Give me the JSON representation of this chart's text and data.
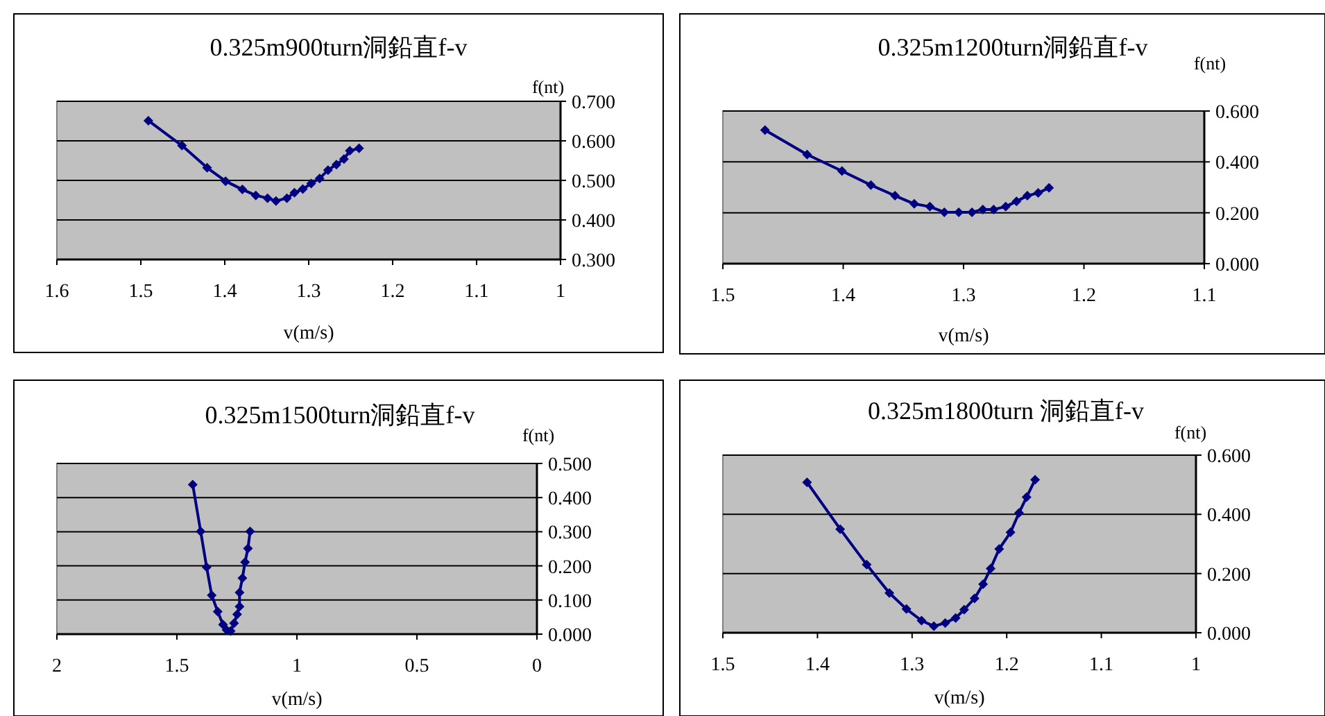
{
  "chart_data": [
    {
      "type": "line",
      "title": "0.325m900turn洞鉛直f-v",
      "xlabel": "v(m/s)",
      "ylabel": "f(nt)",
      "grid": "y",
      "marker": "diamond",
      "line_style": "solid",
      "xlim": [
        1.6,
        1.0
      ],
      "xticks": [
        1.6,
        1.5,
        1.4,
        1.3,
        1.2,
        1.1,
        1
      ],
      "ylim": [
        0.3,
        0.7
      ],
      "yticks": [
        {
          "value": 0.3,
          "label": "0.300"
        },
        {
          "value": 0.4,
          "label": "0.400"
        },
        {
          "value": 0.5,
          "label": "0.500"
        },
        {
          "value": 0.6,
          "label": "0.600"
        },
        {
          "value": 0.7,
          "label": "0.700"
        }
      ],
      "series": [
        {
          "color": "#000080",
          "x": [
            1.491,
            1.451,
            1.421,
            1.399,
            1.379,
            1.363,
            1.349,
            1.339,
            1.326,
            1.317,
            1.307,
            1.297,
            1.287,
            1.277,
            1.267,
            1.258,
            1.251,
            1.24
          ],
          "values": [
            0.651,
            0.588,
            0.532,
            0.498,
            0.477,
            0.462,
            0.455,
            0.448,
            0.455,
            0.469,
            0.478,
            0.492,
            0.505,
            0.526,
            0.54,
            0.554,
            0.575,
            0.581
          ]
        }
      ]
    },
    {
      "type": "line",
      "title": "0.325m1200turn洞鉛直f-v",
      "xlabel": "v(m/s)",
      "ylabel": "f(nt)",
      "grid": "y",
      "marker": "diamond",
      "line_style": "solid",
      "xlim": [
        1.5,
        1.1
      ],
      "xticks": [
        1.5,
        1.4,
        1.3,
        1.2,
        1.1
      ],
      "ylim": [
        0,
        0.6
      ],
      "yticks": [
        {
          "value": 0,
          "label": "0.000"
        },
        {
          "value": 0.2,
          "label": "0.200"
        },
        {
          "value": 0.4,
          "label": "0.400"
        },
        {
          "value": 0.6,
          "label": "0.600"
        }
      ],
      "series": [
        {
          "color": "#000080",
          "x": [
            1.465,
            1.43,
            1.401,
            1.377,
            1.357,
            1.341,
            1.328,
            1.316,
            1.304,
            1.293,
            1.284,
            1.275,
            1.265,
            1.256,
            1.247,
            1.238,
            1.229
          ],
          "values": [
            0.525,
            0.429,
            0.364,
            0.309,
            0.267,
            0.235,
            0.224,
            0.202,
            0.202,
            0.202,
            0.213,
            0.213,
            0.224,
            0.245,
            0.267,
            0.278,
            0.298
          ]
        }
      ]
    },
    {
      "type": "line",
      "title": "0.325m1500turn洞鉛直f-v",
      "xlabel": "v(m/s)",
      "ylabel": "f(nt)",
      "grid": "y",
      "marker": "diamond",
      "line_style": "solid",
      "xlim": [
        2,
        0
      ],
      "xticks": [
        2,
        1.5,
        1,
        0.5,
        0
      ],
      "ylim": [
        0,
        0.5
      ],
      "yticks": [
        {
          "value": 0,
          "label": "0.000"
        },
        {
          "value": 0.1,
          "label": "0.100"
        },
        {
          "value": 0.2,
          "label": "0.200"
        },
        {
          "value": 0.3,
          "label": "0.300"
        },
        {
          "value": 0.4,
          "label": "0.400"
        },
        {
          "value": 0.5,
          "label": "0.500"
        }
      ],
      "series": [
        {
          "color": "#000080",
          "x": [
            1.434,
            1.401,
            1.376,
            1.355,
            1.33,
            1.308,
            1.293,
            1.276,
            1.262,
            1.249,
            1.239,
            1.239,
            1.227,
            1.216,
            1.204,
            1.195
          ],
          "values": [
            0.438,
            0.301,
            0.196,
            0.114,
            0.066,
            0.028,
            0.012,
            0.009,
            0.032,
            0.058,
            0.081,
            0.122,
            0.164,
            0.211,
            0.251,
            0.301
          ]
        }
      ]
    },
    {
      "type": "line",
      "title": "0.325m1800turn 洞鉛直f-v",
      "xlabel": "v(m/s)",
      "ylabel": "f(nt)",
      "grid": "y",
      "marker": "diamond",
      "line_style": "solid",
      "xlim": [
        1.5,
        1.0
      ],
      "xticks": [
        1.5,
        1.4,
        1.3,
        1.2,
        1.1,
        1
      ],
      "ylim": [
        0,
        0.6
      ],
      "yticks": [
        {
          "value": 0,
          "label": "0.000"
        },
        {
          "value": 0.2,
          "label": "0.200"
        },
        {
          "value": 0.4,
          "label": "0.400"
        },
        {
          "value": 0.6,
          "label": "0.600"
        }
      ],
      "series": [
        {
          "color": "#000080",
          "x": [
            1.411,
            1.376,
            1.348,
            1.324,
            1.306,
            1.29,
            1.277,
            1.265,
            1.254,
            1.245,
            1.234,
            1.225,
            1.217,
            1.208,
            1.196,
            1.187,
            1.179,
            1.17
          ],
          "values": [
            0.508,
            0.35,
            0.23,
            0.134,
            0.08,
            0.041,
            0.022,
            0.033,
            0.05,
            0.078,
            0.116,
            0.164,
            0.217,
            0.283,
            0.339,
            0.405,
            0.458,
            0.517
          ]
        }
      ]
    }
  ]
}
